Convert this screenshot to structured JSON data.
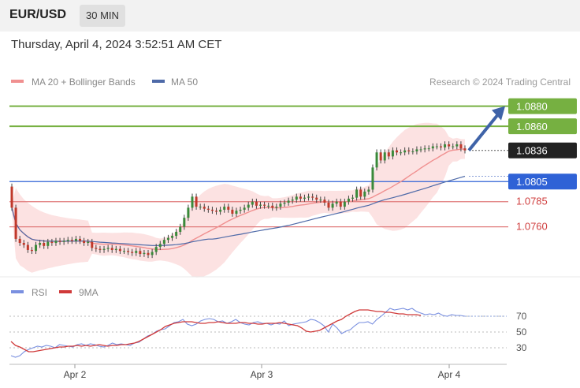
{
  "header": {
    "pair": "EUR/USD",
    "timeframe": "30 MIN",
    "datetime": "Thursday, April 4, 2024 3:52:51 AM CET"
  },
  "credit": "Research © 2024 Trading Central",
  "colors": {
    "green": "#76b041",
    "blue": "#2f62d6",
    "red": "#e07a7a",
    "ma50": "#4e6aa8",
    "ma20": "#f09090",
    "rsi": "#7a90e0",
    "rsi_ma": "#d03a3a",
    "band": "#fbd8d8",
    "arrow": "#3f63a8"
  },
  "legend": {
    "ma20": "MA 20 + Bollinger Bands",
    "ma50": "MA 50"
  },
  "rsi_legend": {
    "rsi": "RSI",
    "ma": "9MA"
  },
  "levels": [
    {
      "value": "1.0880",
      "kind": "green"
    },
    {
      "value": "1.0860",
      "kind": "green"
    },
    {
      "value": "1.0836",
      "kind": "current"
    },
    {
      "value": "1.0805",
      "kind": "blue"
    },
    {
      "value": "1.0785",
      "kind": "red"
    },
    {
      "value": "1.0760",
      "kind": "red"
    }
  ],
  "chart_data": [
    {
      "type": "candlestick",
      "ylim": [
        1.0715,
        1.0893
      ],
      "x_ticks": [
        "Apr 2",
        "Apr 3",
        "Apr 4"
      ],
      "close": [
        1.0779,
        1.0748,
        1.0744,
        1.0742,
        1.0737,
        1.0736,
        1.0742,
        1.0744,
        1.0741,
        1.0745,
        1.0744,
        1.0746,
        1.0745,
        1.0746,
        1.0747,
        1.0746,
        1.0748,
        1.0746,
        1.0744,
        1.0745,
        1.0739,
        1.0738,
        1.0737,
        1.0738,
        1.0739,
        1.0737,
        1.0738,
        1.0736,
        1.0736,
        1.0735,
        1.0734,
        1.0736,
        1.0733,
        1.0734,
        1.0732,
        1.0735,
        1.074,
        1.0743,
        1.0747,
        1.0749,
        1.0751,
        1.0755,
        1.076,
        1.0769,
        1.0779,
        1.079,
        1.078,
        1.078,
        1.0778,
        1.0777,
        1.0776,
        1.0775,
        1.0777,
        1.078,
        1.0777,
        1.0773,
        1.0776,
        1.0777,
        1.0779,
        1.0782,
        1.0785,
        1.0781,
        1.0782,
        1.0781,
        1.0781,
        1.0779,
        1.078,
        1.0783,
        1.0784,
        1.0786,
        1.0787,
        1.079,
        1.0788,
        1.0789,
        1.079,
        1.0789,
        1.0787,
        1.0787,
        1.0784,
        1.0779,
        1.0783,
        1.0785,
        1.078,
        1.0785,
        1.0788,
        1.0789,
        1.0797,
        1.079,
        1.0795,
        1.0797,
        1.0819,
        1.0834,
        1.0826,
        1.0834,
        1.083,
        1.0836,
        1.0834,
        1.0834,
        1.0836,
        1.0835,
        1.0835,
        1.0837,
        1.0837,
        1.0838,
        1.0838,
        1.084,
        1.084,
        1.0839,
        1.0842,
        1.084,
        1.084,
        1.0842,
        1.0838,
        1.0836
      ]
    },
    {
      "type": "line",
      "ylim": [
        15,
        85
      ],
      "y_ticks": [
        70,
        50,
        30
      ],
      "rsi": [
        20,
        18,
        20,
        25,
        28,
        30,
        32,
        31,
        33,
        32,
        30,
        34,
        33,
        32,
        31,
        34,
        35,
        33,
        35,
        34,
        32,
        31,
        33,
        36,
        34,
        35,
        34,
        33,
        36,
        37,
        41,
        45,
        47,
        51,
        53,
        54,
        58,
        62,
        63,
        66,
        60,
        58,
        60,
        64,
        66,
        67,
        66,
        63,
        64,
        61,
        63,
        66,
        62,
        60,
        59,
        62,
        63,
        61,
        61,
        59,
        61,
        60,
        64,
        58,
        60,
        61,
        62,
        63,
        66,
        65,
        62,
        58,
        50,
        60,
        55,
        48,
        51,
        53,
        58,
        62,
        62,
        63,
        60,
        66,
        70,
        75,
        80,
        78,
        79,
        80,
        78,
        80,
        76,
        74,
        72,
        73,
        72,
        74,
        71,
        70,
        72,
        71,
        71,
        70
      ],
      "ma9": [
        38,
        33,
        31,
        28,
        25,
        25,
        26,
        27,
        28,
        29,
        30,
        31,
        31,
        32,
        32,
        33,
        32,
        33,
        32,
        33,
        34,
        33,
        32,
        33,
        33,
        34,
        34,
        35,
        36,
        38,
        41,
        44,
        47,
        50,
        53,
        57,
        59,
        61,
        62,
        63,
        63,
        63,
        62,
        61,
        61,
        62,
        62,
        63,
        62,
        61,
        61,
        61,
        62,
        62,
        61,
        61,
        60,
        60,
        61,
        61,
        61,
        62,
        61,
        60,
        59,
        58,
        55,
        51,
        50,
        51,
        52,
        55,
        58,
        61,
        64,
        66,
        70,
        73,
        76,
        78,
        78,
        78,
        77,
        76,
        76,
        75,
        75,
        74,
        73,
        73,
        72,
        72,
        72,
        71
      ]
    }
  ]
}
